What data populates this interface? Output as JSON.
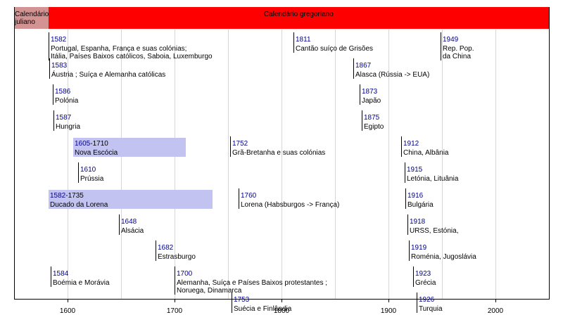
{
  "timeline": {
    "start_year": 1550,
    "end_year": 2050,
    "bands": [
      {
        "label": "Calendário juliano",
        "from": 1550,
        "to": 1582,
        "color": "#d39393"
      },
      {
        "label": "Calendário gregoriano",
        "from": 1582,
        "to": 2050,
        "color": "#ff0000"
      }
    ],
    "ticks": [
      {
        "year": 1600,
        "label": "1600"
      },
      {
        "year": 1700,
        "label": "1700"
      },
      {
        "year": 1800,
        "label": "1800"
      },
      {
        "year": 1900,
        "label": "1900"
      },
      {
        "year": 2000,
        "label": "2000"
      }
    ],
    "events": [
      {
        "year": 1582,
        "year_label": "1582",
        "lines": [
          "Portugal, Espanha, França e suas colónias;",
          "Itália, Países Baixos católicos, Saboia, Luxemburgo"
        ],
        "row": 0
      },
      {
        "year": 1811,
        "year_label": "1811",
        "lines": [
          "Cantão suíço de Grisões"
        ],
        "row": 0
      },
      {
        "year": 1949,
        "year_label": "1949",
        "lines": [
          "Rep. Pop.",
          "da China"
        ],
        "row": 0
      },
      {
        "year": 1583,
        "year_label": "1583",
        "lines": [
          "Áustria ; Suíça e Alemanha católicas"
        ],
        "row": 1
      },
      {
        "year": 1867,
        "year_label": "1867",
        "lines": [
          "Alasca (Rússia -> EUA)"
        ],
        "row": 1
      },
      {
        "year": 1586,
        "year_label": "1586",
        "lines": [
          "Polónia"
        ],
        "row": 2
      },
      {
        "year": 1873,
        "year_label": "1873",
        "lines": [
          "Japão"
        ],
        "row": 2
      },
      {
        "year": 1587,
        "year_label": "1587",
        "lines": [
          "Hungria"
        ],
        "row": 3
      },
      {
        "year": 1875,
        "year_label": "1875",
        "lines": [
          "Egipto"
        ],
        "row": 3
      },
      {
        "year": 1605,
        "end_year": 1710,
        "year_label": "1605",
        "year_end_label": "-1710",
        "lines": [
          "Nova Escócia"
        ],
        "row": 4
      },
      {
        "year": 1752,
        "year_label": "1752",
        "lines": [
          "Grã-Bretanha e suas colónias"
        ],
        "row": 4
      },
      {
        "year": 1912,
        "year_label": "1912",
        "lines": [
          "China, Albânia"
        ],
        "row": 4
      },
      {
        "year": 1610,
        "year_label": "1610",
        "lines": [
          "Prússia"
        ],
        "row": 5
      },
      {
        "year": 1915,
        "year_label": "1915",
        "lines": [
          "Letónia, Lituânia"
        ],
        "row": 5
      },
      {
        "year": 1582,
        "end_year": 1735,
        "year_label": "1582",
        "year_end_label": "-1735",
        "lines": [
          "Ducado da Lorena"
        ],
        "row": 6
      },
      {
        "year": 1760,
        "year_label": "1760",
        "lines": [
          "Lorena (Habsburgos -> França)"
        ],
        "row": 6
      },
      {
        "year": 1916,
        "year_label": "1916",
        "lines": [
          "Bulgária"
        ],
        "row": 6
      },
      {
        "year": 1648,
        "year_label": "1648",
        "lines": [
          "Alsácia"
        ],
        "row": 7
      },
      {
        "year": 1918,
        "year_label": "1918",
        "lines": [
          "URSS, Estónia,"
        ],
        "row": 7
      },
      {
        "year": 1682,
        "year_label": "1682",
        "lines": [
          "Estrasburgo"
        ],
        "row": 8
      },
      {
        "year": 1919,
        "year_label": "1919",
        "lines": [
          "Roménia, Jugoslávia"
        ],
        "row": 8
      },
      {
        "year": 1584,
        "year_label": "1584",
        "lines": [
          "Boémia e Morávia"
        ],
        "row": 9
      },
      {
        "year": 1700,
        "year_label": "1700",
        "lines": [
          "Alemanha, Suíça e Países Baixos protestantes ;",
          "Noruega, Dinamarca"
        ],
        "row": 9
      },
      {
        "year": 1923,
        "year_label": "1923",
        "lines": [
          "Grécia"
        ],
        "row": 9
      },
      {
        "year": 1753,
        "year_label": "1753",
        "lines": [
          "Suécia e Finlândia"
        ],
        "row": 10
      },
      {
        "year": 1926,
        "year_label": "1926",
        "lines": [
          "Turquia"
        ],
        "row": 10
      }
    ]
  }
}
